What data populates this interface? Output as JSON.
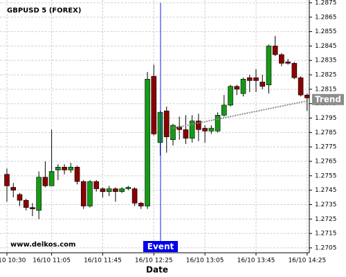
{
  "chart_data": {
    "type": "candlestick",
    "title": "GBPUSD 5 (FOREX)",
    "x_label": "Date",
    "watermark": "www.delkos.com",
    "event_label": "Event",
    "categories": [
      "16/10 10:30",
      null,
      null,
      null,
      null,
      null,
      null,
      "16/10 11:05",
      null,
      null,
      null,
      null,
      null,
      null,
      null,
      "16/10 11:45",
      null,
      null,
      null,
      null,
      null,
      null,
      null,
      "16/10 12:25",
      null,
      null,
      null,
      null,
      null,
      null,
      null,
      "16/10 13:05",
      null,
      null,
      null,
      null,
      null,
      null,
      null,
      "16/10 13:45",
      null,
      null,
      null,
      null,
      null,
      null,
      null,
      "16/10 14:25"
    ],
    "open": [
      1.2756,
      1.2747,
      1.2742,
      1.2738,
      1.2733,
      1.2731,
      1.2754,
      1.2748,
      1.2759,
      1.2761,
      1.2759,
      1.2761,
      1.2751,
      1.2734,
      1.2751,
      1.2746,
      1.2744,
      1.2746,
      1.2744,
      1.2746,
      1.2746,
      1.2736,
      1.2734,
      1.2824,
      1.2778,
      1.28,
      1.278,
      1.2789,
      1.2787,
      1.2781,
      1.2793,
      1.2788,
      1.2786,
      1.2786,
      1.2797,
      1.2804,
      1.2817,
      1.2812,
      1.2823,
      1.2823,
      1.282,
      1.2818,
      1.2845,
      1.2839,
      1.2834,
      1.2833,
      1.2823,
      1.2811
    ],
    "high": [
      1.276,
      1.275,
      1.2743,
      1.2739,
      1.2736,
      1.2758,
      1.2765,
      1.2787,
      1.2763,
      1.2763,
      1.2764,
      1.2762,
      1.2752,
      1.2752,
      1.2752,
      1.2747,
      1.2748,
      1.2747,
      1.2747,
      1.2748,
      1.2747,
      1.2737,
      1.2827,
      1.2832,
      1.28,
      1.2803,
      1.2791,
      1.2796,
      1.2797,
      1.2797,
      1.2798,
      1.279,
      1.279,
      1.2799,
      1.2811,
      1.2818,
      1.2818,
      1.2823,
      1.2825,
      1.2829,
      1.2825,
      1.2846,
      1.2852,
      1.284,
      1.2836,
      1.2834,
      1.2824,
      1.2812
    ],
    "low": [
      1.2737,
      1.274,
      1.2734,
      1.2731,
      1.2727,
      1.2725,
      1.2747,
      1.2748,
      1.2752,
      1.2756,
      1.2757,
      1.2749,
      1.2732,
      1.2733,
      1.2744,
      1.274,
      1.2741,
      1.2737,
      1.2743,
      1.2745,
      1.2734,
      1.2732,
      1.2732,
      1.2783,
      1.2769,
      1.2771,
      1.2776,
      1.278,
      1.2777,
      1.2778,
      1.2779,
      1.2778,
      1.2784,
      1.2785,
      1.2796,
      1.2803,
      1.2811,
      1.281,
      1.2813,
      1.2813,
      1.2815,
      1.2812,
      1.2838,
      1.2831,
      1.2832,
      1.2822,
      1.281,
      1.28
    ],
    "close": [
      1.2748,
      1.2745,
      1.2738,
      1.2733,
      1.2732,
      1.2754,
      1.2748,
      1.2758,
      1.2761,
      1.2759,
      1.2761,
      1.2751,
      1.2734,
      1.2751,
      1.2746,
      1.2744,
      1.2746,
      1.2744,
      1.2746,
      1.2747,
      1.2736,
      1.2734,
      1.2822,
      1.2784,
      1.2799,
      1.2782,
      1.279,
      1.2787,
      1.2781,
      1.2793,
      1.2787,
      1.2786,
      1.2788,
      1.2797,
      1.2804,
      1.2817,
      1.2815,
      1.2822,
      1.2821,
      1.2821,
      1.2817,
      1.2845,
      1.2839,
      1.2833,
      1.2833,
      1.2823,
      1.2811,
      1.2809
    ],
    "up_color": "#159a15",
    "down_color": "#8b0000",
    "trend": {
      "name": "Trend",
      "color": "#8c8c8c",
      "values": [
        null,
        null,
        null,
        null,
        null,
        null,
        null,
        null,
        null,
        null,
        null,
        null,
        null,
        null,
        null,
        null,
        null,
        null,
        null,
        null,
        null,
        null,
        null,
        null,
        null,
        null,
        1.2788,
        1.27889,
        1.27898,
        1.27907,
        1.27916,
        1.27925,
        1.27934,
        1.27943,
        1.27952,
        1.27961,
        1.2797,
        1.27979,
        1.27988,
        1.27997,
        1.28006,
        1.28015,
        1.28024,
        1.28033,
        1.28042,
        1.28051,
        1.2806,
        1.28069
      ]
    },
    "ylim": [
      1.27016,
      1.28769
    ],
    "yticks": [
      1.2705,
      1.2715,
      1.2725,
      1.2735,
      1.2745,
      1.2755,
      1.2765,
      1.2775,
      1.2785,
      1.2795,
      1.2805,
      1.2815,
      1.2825,
      1.2835,
      1.2845,
      1.2855,
      1.2865,
      1.2875
    ],
    "grid": true
  }
}
